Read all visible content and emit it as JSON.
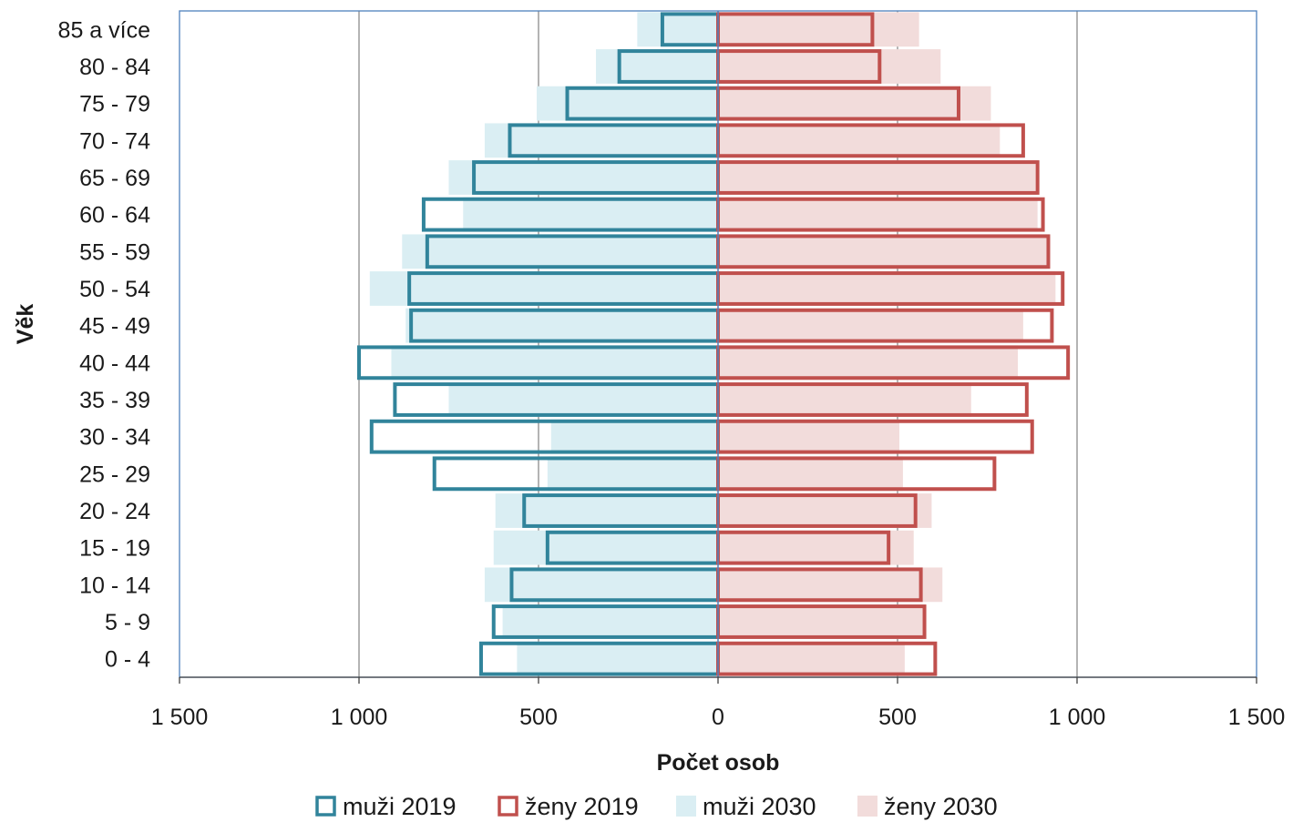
{
  "chart_data": {
    "type": "bar",
    "orientation": "horizontal",
    "layout": "population-pyramid",
    "xlabel": "Počet osob",
    "ylabel": "Věk",
    "xlim": [
      -1500,
      1500
    ],
    "x_ticks": [
      -1500,
      -1000,
      -500,
      0,
      500,
      1000,
      1500
    ],
    "x_tick_labels": [
      "1 500",
      "1 000",
      "500",
      "0",
      "500",
      "1 000",
      "1 500"
    ],
    "grid": true,
    "legend_position": "bottom",
    "categories": [
      "0 - 4",
      "5 - 9",
      "10 - 14",
      "15 - 19",
      "20 - 24",
      "25 - 29",
      "30 - 34",
      "35 - 39",
      "40 - 44",
      "45 - 49",
      "50 - 54",
      "55 - 59",
      "60 - 64",
      "65 - 69",
      "70 - 74",
      "75 - 79",
      "80 - 84",
      "85 a více"
    ],
    "series": [
      {
        "name": "muži 2019",
        "side": "left",
        "style": "outline",
        "color": "#31849B",
        "values": [
          660,
          625,
          575,
          475,
          540,
          790,
          965,
          900,
          1000,
          855,
          860,
          810,
          820,
          680,
          580,
          420,
          275,
          155
        ]
      },
      {
        "name": "ženy 2019",
        "side": "right",
        "style": "outline",
        "color": "#C0504D",
        "values": [
          605,
          575,
          565,
          475,
          550,
          770,
          875,
          860,
          975,
          930,
          960,
          920,
          905,
          890,
          850,
          670,
          450,
          430
        ]
      },
      {
        "name": "muži 2030",
        "side": "left",
        "style": "fill",
        "color": "#DAEEF3",
        "values": [
          560,
          600,
          650,
          625,
          620,
          475,
          465,
          750,
          910,
          870,
          970,
          880,
          710,
          750,
          650,
          505,
          340,
          225
        ]
      },
      {
        "name": "ženy 2030",
        "side": "right",
        "style": "fill",
        "color": "#F2DCDB",
        "values": [
          520,
          580,
          625,
          545,
          595,
          515,
          505,
          705,
          835,
          850,
          940,
          915,
          890,
          890,
          785,
          760,
          620,
          560
        ]
      }
    ]
  }
}
